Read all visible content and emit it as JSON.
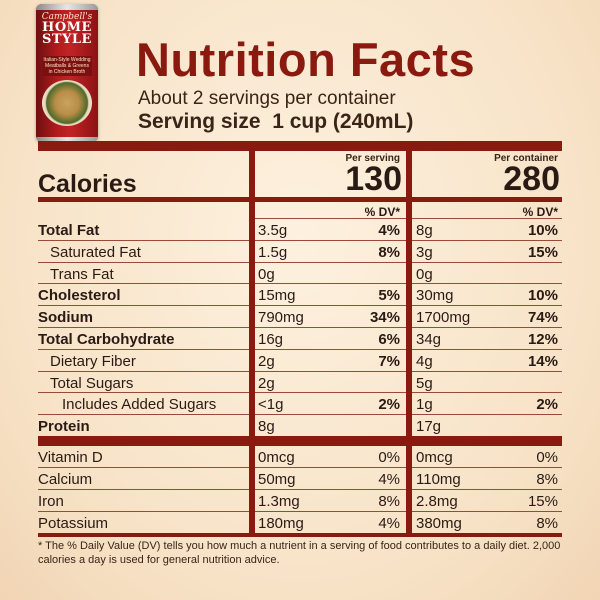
{
  "product": {
    "brand": "Campbell's",
    "line": "HOME STYLE",
    "variety": "Italian-Style Wedding Meatballs & Greens in Chicken Broth"
  },
  "label": {
    "title": "Nutrition Facts",
    "servings_per_container": "About 2 servings per container",
    "serving_size": "Serving size  1 cup (240mL)",
    "per_serving_heading": "Per serving",
    "per_container_heading": "Per container",
    "calories_label": "Calories",
    "calories_per_serving": "130",
    "calories_per_container": "280",
    "dv_heading": "% DV*"
  },
  "nutrients": [
    {
      "name": "Total Fat",
      "bold": true,
      "indent": 0,
      "serving_amount": "3.5g",
      "serving_dv": "4%",
      "container_amount": "8g",
      "container_dv": "10%"
    },
    {
      "name": "Saturated Fat",
      "bold": false,
      "indent": 1,
      "serving_amount": "1.5g",
      "serving_dv": "8%",
      "container_amount": "3g",
      "container_dv": "15%"
    },
    {
      "name": "Trans Fat",
      "bold": false,
      "indent": 1,
      "serving_amount": "0g",
      "serving_dv": "",
      "container_amount": "0g",
      "container_dv": ""
    },
    {
      "name": "Cholesterol",
      "bold": true,
      "indent": 0,
      "serving_amount": "15mg",
      "serving_dv": "5%",
      "container_amount": "30mg",
      "container_dv": "10%"
    },
    {
      "name": "Sodium",
      "bold": true,
      "indent": 0,
      "serving_amount": "790mg",
      "serving_dv": "34%",
      "container_amount": "1700mg",
      "container_dv": "74%"
    },
    {
      "name": "Total Carbohydrate",
      "bold": true,
      "indent": 0,
      "serving_amount": "16g",
      "serving_dv": "6%",
      "container_amount": "34g",
      "container_dv": "12%"
    },
    {
      "name": "Dietary Fiber",
      "bold": false,
      "indent": 1,
      "serving_amount": "2g",
      "serving_dv": "7%",
      "container_amount": "4g",
      "container_dv": "14%"
    },
    {
      "name": "Total Sugars",
      "bold": false,
      "indent": 1,
      "serving_amount": "2g",
      "serving_dv": "",
      "container_amount": "5g",
      "container_dv": ""
    },
    {
      "name": "Includes Added Sugars",
      "bold": false,
      "indent": 2,
      "serving_amount": "<1g",
      "serving_dv": "2%",
      "container_amount": "1g",
      "container_dv": "2%"
    },
    {
      "name": "Protein",
      "bold": true,
      "indent": 0,
      "serving_amount": "8g",
      "serving_dv": "",
      "container_amount": "17g",
      "container_dv": ""
    }
  ],
  "vitamins": [
    {
      "name": "Vitamin D",
      "serving_amount": "0mcg",
      "serving_dv": "0%",
      "container_amount": "0mcg",
      "container_dv": "0%"
    },
    {
      "name": "Calcium",
      "serving_amount": "50mg",
      "serving_dv": "4%",
      "container_amount": "110mg",
      "container_dv": "8%"
    },
    {
      "name": "Iron",
      "serving_amount": "1.3mg",
      "serving_dv": "8%",
      "container_amount": "2.8mg",
      "container_dv": "15%"
    },
    {
      "name": "Potassium",
      "serving_amount": "180mg",
      "serving_dv": "4%",
      "container_amount": "380mg",
      "container_dv": "8%"
    }
  ],
  "footnote": "* The % Daily Value (DV) tells you how much a nutrient in a serving of food contributes to a daily diet. 2,000 calories a day is used for general nutrition advice.",
  "colors": {
    "accent": "#8a1a10",
    "background": "#fbead3"
  }
}
